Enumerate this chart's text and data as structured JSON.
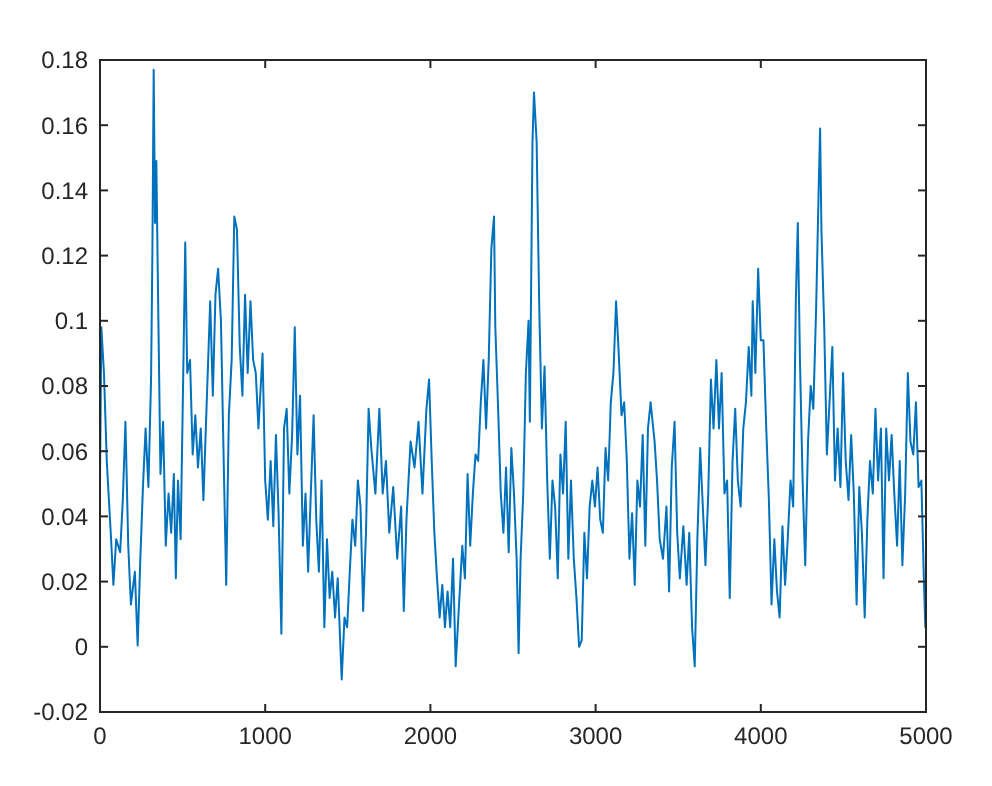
{
  "chart_data": {
    "type": "line",
    "grid": false,
    "marker": "none",
    "line_style": "solid",
    "xlim": [
      0,
      5000
    ],
    "ylim": [
      -0.02,
      0.18
    ],
    "xticks": [
      0,
      1000,
      2000,
      3000,
      4000,
      5000
    ],
    "yticks": [
      -0.02,
      0,
      0.02,
      0.04,
      0.06,
      0.08,
      0.1,
      0.12,
      0.14,
      0.16,
      0.18
    ],
    "series": [
      {
        "color": "#0072bd",
        "x": [
          0,
          8,
          24,
          41,
          65,
          81,
          98,
          122,
          138,
          154,
          171,
          187,
          211,
          228,
          244,
          260,
          276,
          293,
          309,
          317,
          325,
          333,
          341,
          354,
          366,
          382,
          398,
          415,
          431,
          447,
          459,
          472,
          488,
          504,
          516,
          528,
          545,
          561,
          577,
          593,
          610,
          626,
          646,
          667,
          683,
          699,
          715,
          732,
          748,
          764,
          780,
          797,
          813,
          829,
          846,
          862,
          878,
          894,
          911,
          927,
          943,
          959,
          984,
          1000,
          1016,
          1033,
          1049,
          1065,
          1081,
          1098,
          1114,
          1130,
          1146,
          1163,
          1179,
          1195,
          1211,
          1228,
          1244,
          1260,
          1276,
          1293,
          1309,
          1325,
          1341,
          1358,
          1374,
          1390,
          1406,
          1423,
          1439,
          1463,
          1480,
          1496,
          1512,
          1528,
          1545,
          1561,
          1577,
          1593,
          1610,
          1626,
          1642,
          1667,
          1691,
          1711,
          1731,
          1751,
          1775,
          1799,
          1823,
          1839,
          1855,
          1880,
          1904,
          1928,
          1952,
          1976,
          1992,
          2008,
          2024,
          2040,
          2056,
          2072,
          2088,
          2104,
          2120,
          2137,
          2153,
          2169,
          2193,
          2209,
          2225,
          2241,
          2257,
          2273,
          2289,
          2305,
          2321,
          2337,
          2353,
          2369,
          2385,
          2393,
          2410,
          2426,
          2442,
          2458,
          2474,
          2490,
          2506,
          2522,
          2534,
          2546,
          2562,
          2578,
          2594,
          2602,
          2618,
          2627,
          2643,
          2659,
          2675,
          2691,
          2707,
          2723,
          2739,
          2755,
          2771,
          2787,
          2803,
          2819,
          2835,
          2851,
          2868,
          2884,
          2900,
          2916,
          2932,
          2948,
          2964,
          2980,
          2996,
          3012,
          3028,
          3044,
          3060,
          3076,
          3092,
          3108,
          3124,
          3140,
          3157,
          3173,
          3189,
          3205,
          3221,
          3237,
          3253,
          3269,
          3285,
          3301,
          3317,
          3333,
          3357,
          3372,
          3388,
          3408,
          3429,
          3445,
          3461,
          3478,
          3494,
          3510,
          3531,
          3551,
          3567,
          3584,
          3600,
          3616,
          3633,
          3649,
          3665,
          3682,
          3698,
          3714,
          3731,
          3747,
          3763,
          3780,
          3796,
          3812,
          3829,
          3845,
          3861,
          3878,
          3894,
          3910,
          3927,
          3943,
          3951,
          3967,
          3984,
          4000,
          4016,
          4033,
          4049,
          4065,
          4082,
          4098,
          4114,
          4131,
          4147,
          4163,
          4180,
          4196,
          4212,
          4224,
          4237,
          4253,
          4269,
          4286,
          4302,
          4318,
          4335,
          4351,
          4359,
          4367,
          4384,
          4400,
          4416,
          4433,
          4449,
          4465,
          4482,
          4498,
          4514,
          4531,
          4547,
          4563,
          4580,
          4596,
          4612,
          4629,
          4645,
          4661,
          4678,
          4694,
          4710,
          4727,
          4743,
          4759,
          4776,
          4792,
          4808,
          4825,
          4841,
          4857,
          4874,
          4890,
          4906,
          4923,
          4939,
          4955,
          4972,
          4988,
          4996,
          5000
        ],
        "values": [
          0.051,
          0.098,
          0.084,
          0.057,
          0.035,
          0.019,
          0.033,
          0.029,
          0.045,
          0.069,
          0.031,
          0.013,
          0.023,
          0.0004,
          0.027,
          0.049,
          0.067,
          0.049,
          0.082,
          0.12,
          0.177,
          0.13,
          0.149,
          0.098,
          0.053,
          0.069,
          0.031,
          0.047,
          0.035,
          0.053,
          0.021,
          0.051,
          0.033,
          0.084,
          0.124,
          0.084,
          0.088,
          0.059,
          0.071,
          0.055,
          0.067,
          0.045,
          0.075,
          0.106,
          0.077,
          0.108,
          0.116,
          0.1,
          0.059,
          0.019,
          0.071,
          0.088,
          0.132,
          0.128,
          0.092,
          0.077,
          0.108,
          0.084,
          0.106,
          0.088,
          0.084,
          0.067,
          0.09,
          0.051,
          0.039,
          0.057,
          0.037,
          0.065,
          0.041,
          0.004,
          0.067,
          0.073,
          0.047,
          0.065,
          0.098,
          0.059,
          0.077,
          0.031,
          0.047,
          0.023,
          0.047,
          0.071,
          0.039,
          0.023,
          0.051,
          0.006,
          0.033,
          0.015,
          0.023,
          0.009,
          0.021,
          -0.01,
          0.009,
          0.006,
          0.023,
          0.039,
          0.031,
          0.051,
          0.043,
          0.011,
          0.035,
          0.073,
          0.061,
          0.047,
          0.073,
          0.047,
          0.057,
          0.035,
          0.049,
          0.027,
          0.043,
          0.011,
          0.039,
          0.063,
          0.055,
          0.069,
          0.047,
          0.073,
          0.082,
          0.057,
          0.035,
          0.021,
          0.009,
          0.019,
          0.006,
          0.017,
          0.006,
          0.027,
          -0.006,
          0.009,
          0.031,
          0.021,
          0.053,
          0.031,
          0.047,
          0.059,
          0.057,
          0.075,
          0.088,
          0.067,
          0.088,
          0.122,
          0.132,
          0.098,
          0.073,
          0.047,
          0.035,
          0.055,
          0.029,
          0.061,
          0.047,
          0.027,
          -0.002,
          0.027,
          0.047,
          0.084,
          0.1,
          0.069,
          0.155,
          0.17,
          0.155,
          0.104,
          0.067,
          0.086,
          0.051,
          0.027,
          0.051,
          0.043,
          0.021,
          0.059,
          0.047,
          0.069,
          0.027,
          0.051,
          0.027,
          0.015,
          0.0,
          0.002,
          0.035,
          0.021,
          0.043,
          0.051,
          0.043,
          0.055,
          0.039,
          0.035,
          0.061,
          0.051,
          0.075,
          0.084,
          0.106,
          0.09,
          0.071,
          0.075,
          0.057,
          0.027,
          0.041,
          0.019,
          0.051,
          0.043,
          0.065,
          0.031,
          0.067,
          0.075,
          0.063,
          0.051,
          0.033,
          0.027,
          0.043,
          0.017,
          0.055,
          0.069,
          0.035,
          0.021,
          0.037,
          0.019,
          0.035,
          0.006,
          -0.006,
          0.033,
          0.061,
          0.043,
          0.025,
          0.047,
          0.082,
          0.067,
          0.088,
          0.067,
          0.084,
          0.047,
          0.051,
          0.015,
          0.057,
          0.073,
          0.051,
          0.043,
          0.067,
          0.075,
          0.092,
          0.077,
          0.106,
          0.084,
          0.116,
          0.094,
          0.094,
          0.067,
          0.045,
          0.013,
          0.033,
          0.017,
          0.009,
          0.037,
          0.019,
          0.033,
          0.051,
          0.043,
          0.106,
          0.13,
          0.088,
          0.051,
          0.025,
          0.063,
          0.08,
          0.073,
          0.104,
          0.142,
          0.159,
          0.128,
          0.098,
          0.059,
          0.075,
          0.092,
          0.051,
          0.067,
          0.049,
          0.084,
          0.057,
          0.045,
          0.065,
          0.047,
          0.013,
          0.049,
          0.035,
          0.009,
          0.039,
          0.057,
          0.047,
          0.073,
          0.051,
          0.067,
          0.021,
          0.067,
          0.051,
          0.065,
          0.047,
          0.031,
          0.057,
          0.025,
          0.047,
          0.084,
          0.063,
          0.059,
          0.075,
          0.049,
          0.051,
          0.019,
          0.006,
          0.013
        ]
      }
    ]
  }
}
